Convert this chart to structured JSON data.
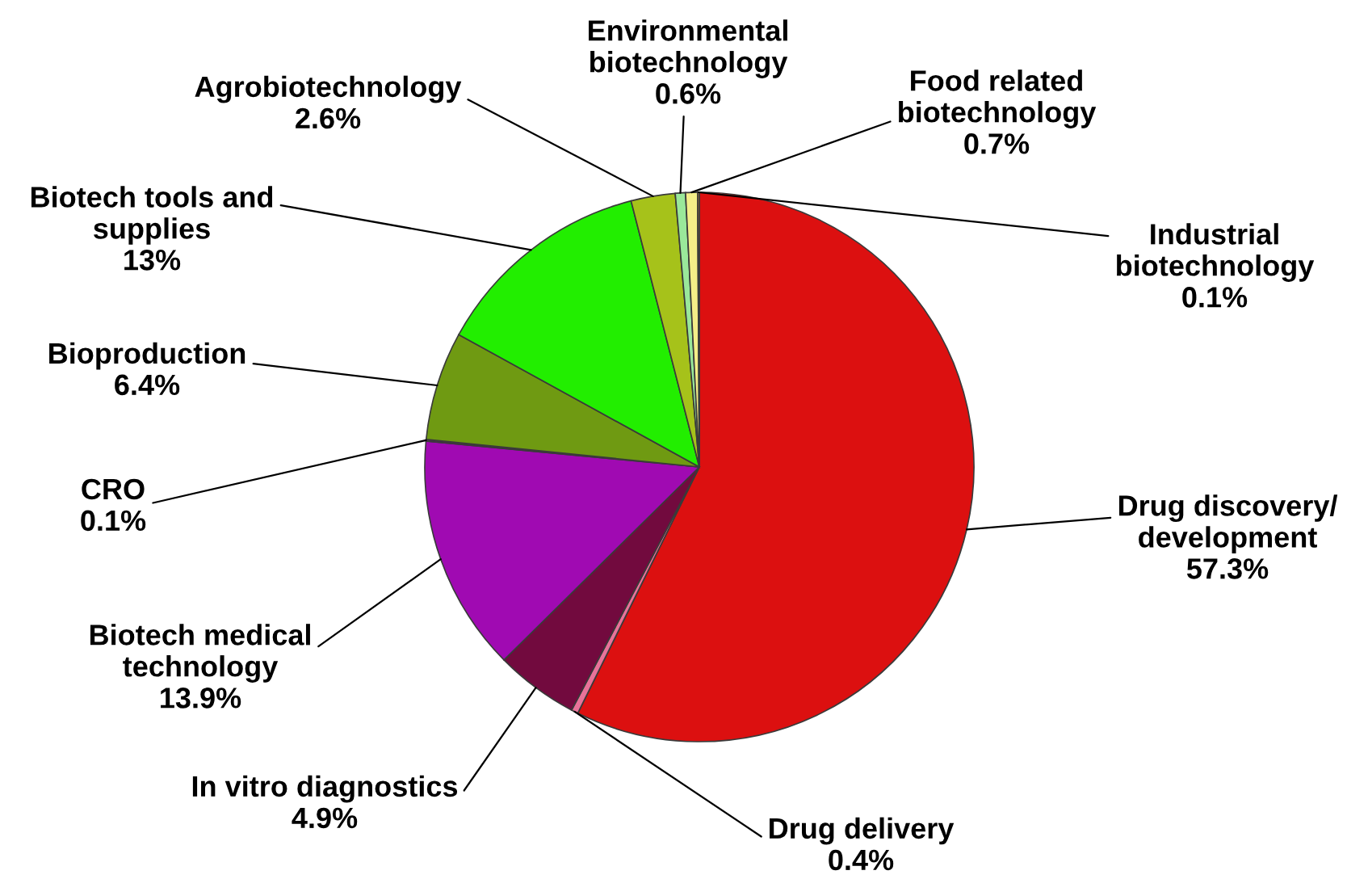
{
  "chart_data": {
    "type": "pie",
    "categories": [
      "Drug discovery/\ndevelopment",
      "Drug delivery",
      "In vitro diagnostics",
      "Biotech medical\ntechnology",
      "CRO",
      "Bioproduction",
      "Biotech tools and\nsupplies",
      "Agrobiotechnology",
      "Environmental\nbiotechnology",
      "Food related\nbiotechnology",
      "Industrial\nbiotechnology"
    ],
    "values": [
      57.3,
      0.4,
      4.9,
      13.9,
      0.1,
      6.4,
      13,
      2.6,
      0.6,
      0.7,
      0.1
    ],
    "colors": [
      "#dc1010",
      "#e8739a",
      "#720a3e",
      "#a00ab2",
      "#5a2060",
      "#6f9a12",
      "#22ee00",
      "#a6c21a",
      "#9ae89a",
      "#f4ee88",
      "#e8a040"
    ],
    "value_labels": [
      "57.3%",
      "0.4%",
      "4.9%",
      "13.9%",
      "0.1%",
      "6.4%",
      "13%",
      "2.6%",
      "0.6%",
      "0.7%",
      "0.1%"
    ]
  }
}
